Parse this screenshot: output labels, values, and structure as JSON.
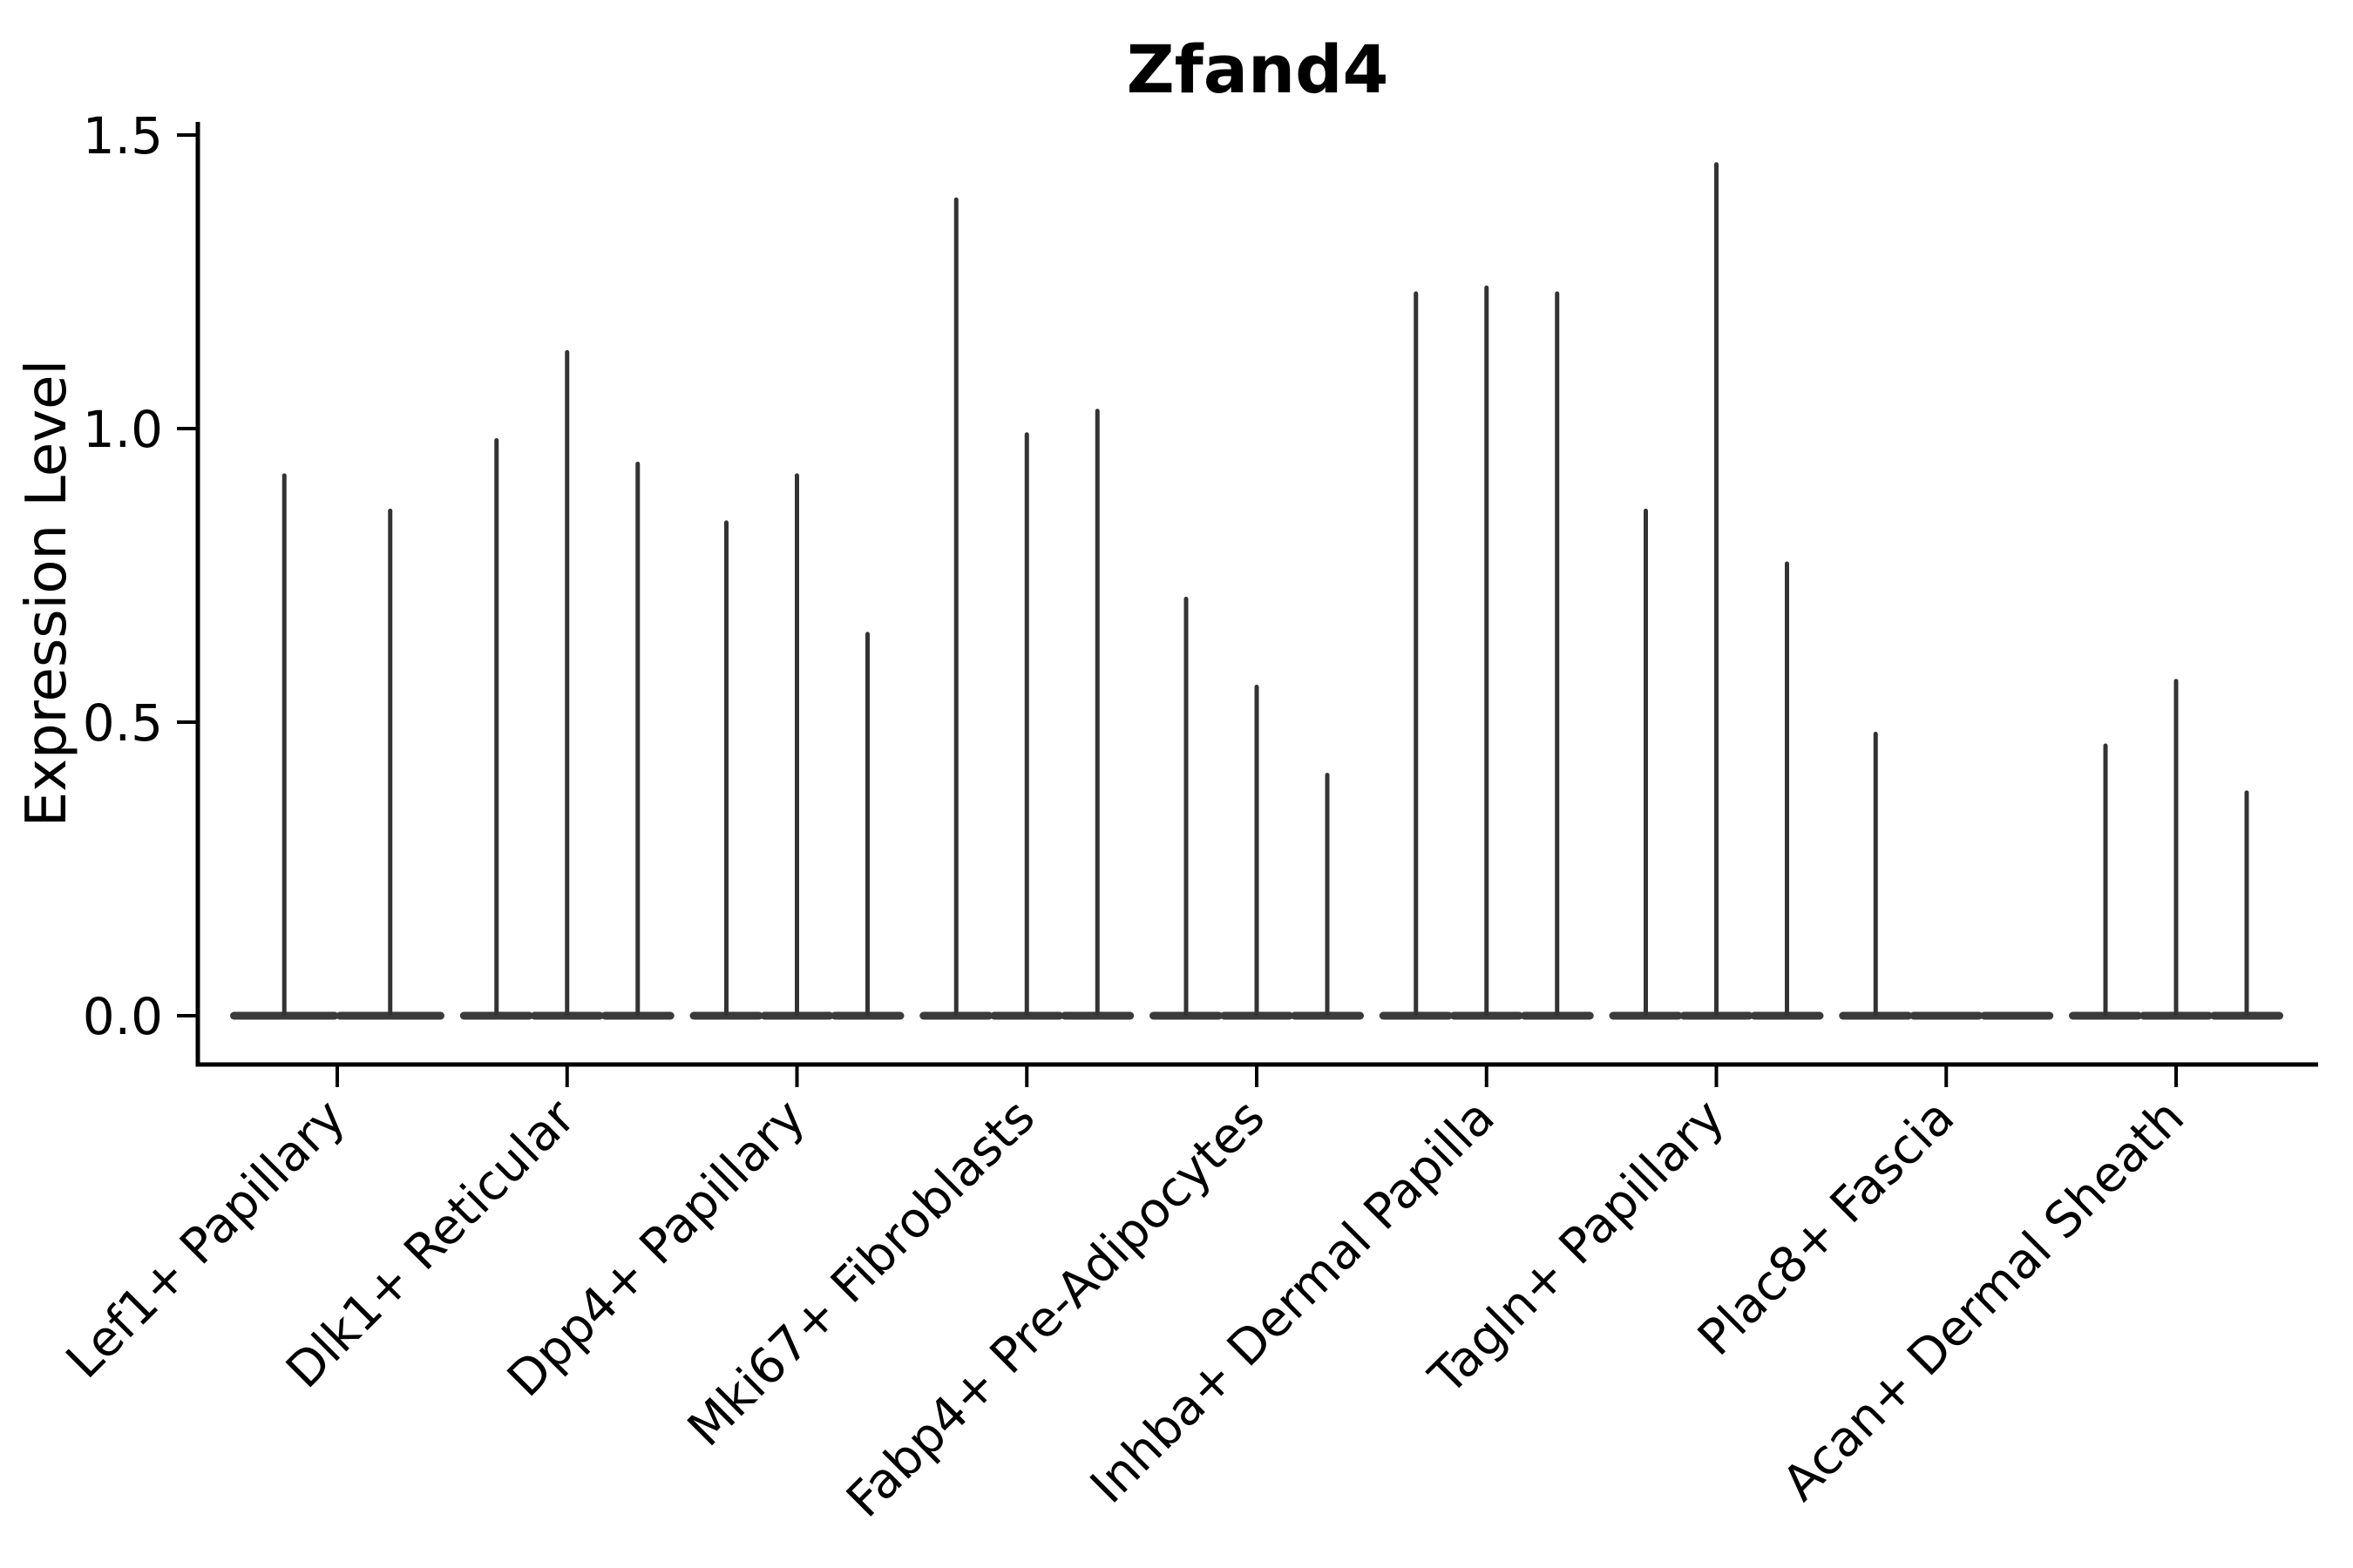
{
  "chart_data": {
    "type": "violin",
    "title": "Zfand4",
    "xlabel": "",
    "ylabel": "Expression Level",
    "ylim": [
      -0.08,
      1.53
    ],
    "yticks": [
      0,
      0.5,
      1,
      1.5
    ],
    "ytick_labels": [
      "0.0",
      "0.5",
      "1.0",
      "1.5"
    ],
    "grid": false,
    "legend_position": "none",
    "violin_color": "#333333",
    "violin_base_color": "#3b3b3b",
    "axis_color": "#000000",
    "categories": [
      "Lef1+ Papillary",
      "Dlk1+ Reticular",
      "Dpp4+ Papillary",
      "Mki67+ Fibroblasts",
      "Fabp4+ Pre-Adipocytes",
      "Inhba+ Dermal Papilla",
      "Tagln+ Papillary",
      "Plac8+ Fascia",
      "Acan+ Dermal Sheath"
    ],
    "groups": [
      {
        "category": "Lef1+ Papillary",
        "violin_peaks": [
          0.92,
          0.86
        ]
      },
      {
        "category": "Dlk1+ Reticular",
        "violin_peaks": [
          0.98,
          1.13,
          0.94
        ]
      },
      {
        "category": "Dpp4+ Papillary",
        "violin_peaks": [
          0.84,
          0.92,
          0.65
        ]
      },
      {
        "category": "Mki67+ Fibroblasts",
        "violin_peaks": [
          1.39,
          0.99,
          1.03
        ]
      },
      {
        "category": "Fabp4+ Pre-Adipocytes",
        "violin_peaks": [
          0.71,
          0.56,
          0.41
        ]
      },
      {
        "category": "Inhba+ Dermal Papilla",
        "violin_peaks": [
          1.23,
          1.24,
          1.23
        ]
      },
      {
        "category": "Tagln+ Papillary",
        "violin_peaks": [
          0.86,
          1.45,
          0.77
        ]
      },
      {
        "category": "Plac8+ Fascia",
        "violin_peaks": [
          0.48,
          0,
          0
        ]
      },
      {
        "category": "Acan+ Dermal Sheath",
        "violin_peaks": [
          0.46,
          0.57,
          0.38
        ]
      }
    ]
  }
}
